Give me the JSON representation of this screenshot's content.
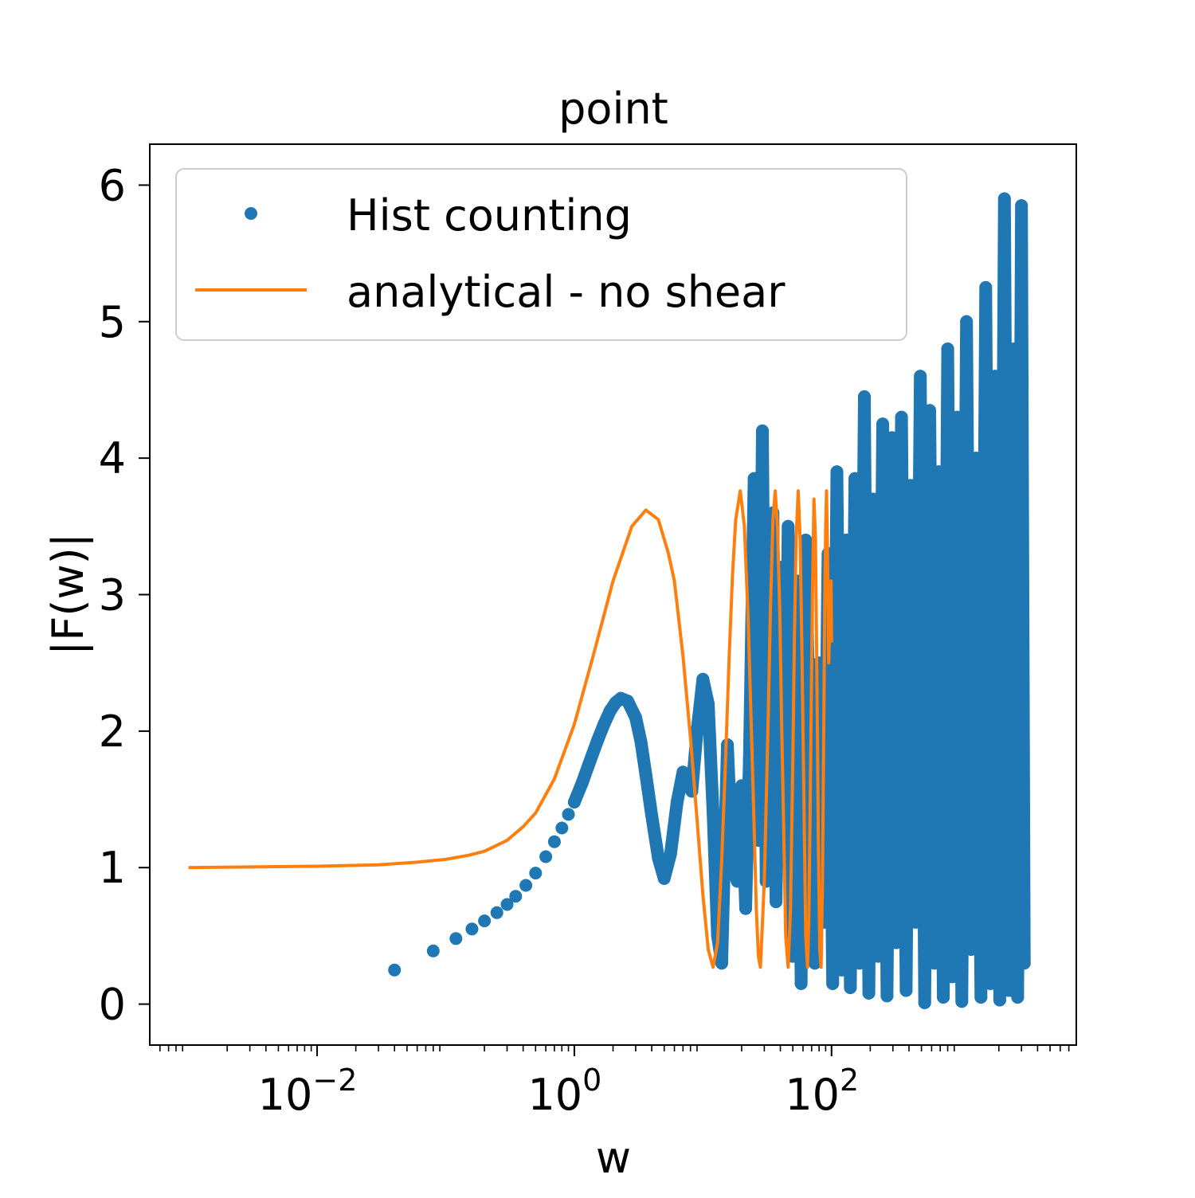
{
  "chart_data": {
    "type": "line",
    "title": "point",
    "xlabel": "w",
    "ylabel": "|F(w)|",
    "xscale": "log",
    "xlim": [
      0.0005,
      8000
    ],
    "ylim": [
      -0.3,
      6.3
    ],
    "grid": false,
    "legend_position": "top-left",
    "x_ticks": [
      {
        "value": 0.01,
        "base": "10",
        "exp": "−2"
      },
      {
        "value": 1,
        "base": "10",
        "exp": "0"
      },
      {
        "value": 100,
        "base": "10",
        "exp": "2"
      }
    ],
    "y_ticks": [
      0,
      1,
      2,
      3,
      4,
      5,
      6
    ],
    "series": [
      {
        "name": "Hist counting",
        "style": "markers",
        "color": "#1f77b4",
        "x": [
          0.04,
          0.08,
          0.12,
          0.16,
          0.2,
          0.25,
          0.3,
          0.35,
          0.42,
          0.5,
          0.6,
          0.7,
          0.8,
          0.9,
          1.0,
          1.15,
          1.3,
          1.5,
          1.7,
          1.9,
          2.1,
          2.3,
          2.6,
          3.0,
          3.3,
          3.6,
          4.0,
          4.5,
          5.0,
          5.6,
          6.3,
          7.0,
          7.6,
          8.2,
          9.0,
          10.0,
          11.0,
          12.0,
          13.0,
          14.0,
          15.5,
          17.0,
          18.5,
          20.0,
          21.5,
          23.0,
          25.0,
          27.0,
          29.0,
          31.0,
          33.0,
          35.0,
          37.0,
          40.0,
          43.0,
          46.0,
          50.0,
          54.0,
          58.0,
          63.0,
          68.0,
          74.0,
          80.0,
          87.0,
          94.0,
          102.0,
          110.0,
          120.0,
          130.0,
          140.0,
          152.0,
          165.0,
          180.0,
          195.0,
          210.0,
          230.0,
          250.0,
          270.0,
          295.0,
          320.0,
          350.0,
          380.0,
          410.0,
          450.0,
          490.0,
          530.0,
          580.0,
          630.0,
          680.0,
          740.0,
          800.0,
          870.0,
          950.0,
          1030.0,
          1120.0,
          1220.0,
          1330.0,
          1450.0,
          1580.0,
          1720.0,
          1870.0,
          2030.0,
          2210.0,
          2400.0,
          2600.0,
          2800.0,
          3000.0,
          3150.0
        ],
        "y": [
          0.25,
          0.39,
          0.48,
          0.55,
          0.61,
          0.67,
          0.73,
          0.79,
          0.87,
          0.96,
          1.08,
          1.19,
          1.29,
          1.39,
          1.48,
          1.62,
          1.76,
          1.92,
          2.05,
          2.15,
          2.21,
          2.24,
          2.22,
          2.1,
          1.92,
          1.68,
          1.38,
          1.07,
          0.92,
          1.1,
          1.48,
          1.7,
          1.62,
          1.56,
          2.0,
          2.38,
          2.2,
          1.4,
          0.5,
          0.3,
          1.9,
          1.0,
          0.9,
          1.6,
          0.7,
          1.8,
          3.85,
          1.2,
          4.2,
          0.9,
          2.5,
          3.6,
          0.75,
          3.2,
          1.05,
          3.5,
          0.35,
          3.1,
          0.15,
          3.4,
          1.7,
          0.3,
          2.5,
          0.6,
          3.3,
          0.15,
          3.9,
          0.25,
          3.4,
          0.12,
          3.85,
          0.3,
          4.45,
          0.08,
          3.7,
          0.35,
          4.25,
          0.06,
          4.15,
          0.45,
          4.3,
          0.1,
          3.8,
          0.6,
          4.6,
          0.01,
          4.35,
          0.3,
          3.9,
          0.05,
          4.8,
          0.2,
          4.3,
          0.02,
          5.0,
          0.4,
          4.0,
          0.05,
          5.25,
          0.15,
          4.6,
          0.03,
          5.9,
          0.1,
          4.8,
          0.05,
          5.85,
          0.3
        ]
      },
      {
        "name": "analytical - no shear",
        "style": "line",
        "color": "#ff7f0e",
        "x": [
          0.001,
          0.003,
          0.01,
          0.03,
          0.06,
          0.1,
          0.15,
          0.2,
          0.3,
          0.4,
          0.5,
          0.7,
          1.0,
          1.4,
          2.0,
          2.8,
          3.6,
          4.5,
          5.4,
          6.0,
          7.0,
          8.0,
          9.0,
          10.0,
          11.0,
          12.0,
          13.0,
          14.0,
          15.0,
          16.0,
          17.0,
          18.0,
          19.5,
          21.0,
          22.5,
          24.0,
          25.0,
          26.0,
          27.0,
          28.0,
          30.0,
          32.0,
          33.5,
          35.0,
          36.5,
          38.0,
          39.5,
          41.0,
          42.0,
          44.0,
          46.0,
          48.0,
          50.0,
          51.5,
          53.0,
          55.0,
          57.0,
          59.0,
          61.0,
          63.0,
          65.0,
          66.5,
          68.0,
          69.5,
          71.0,
          73.0,
          75.0,
          77.0,
          79.0,
          81.0,
          83.0,
          85.0,
          87.0,
          88.5,
          90.0,
          91.5,
          93.0,
          95.0,
          97.0,
          99.0,
          100.0
        ],
        "y": [
          1.0,
          1.005,
          1.01,
          1.02,
          1.04,
          1.06,
          1.09,
          1.12,
          1.2,
          1.3,
          1.4,
          1.65,
          2.05,
          2.55,
          3.1,
          3.5,
          3.62,
          3.55,
          3.3,
          3.1,
          2.55,
          1.95,
          1.35,
          0.8,
          0.4,
          0.27,
          0.45,
          1.05,
          1.8,
          2.55,
          3.15,
          3.55,
          3.76,
          3.5,
          2.8,
          1.9,
          1.3,
          0.7,
          0.35,
          0.27,
          0.9,
          2.0,
          2.9,
          3.55,
          3.76,
          3.5,
          2.9,
          2.0,
          1.5,
          0.5,
          0.27,
          0.7,
          1.8,
          2.7,
          3.4,
          3.76,
          3.4,
          2.5,
          1.5,
          0.5,
          0.27,
          0.6,
          1.3,
          2.2,
          3.0,
          3.7,
          3.4,
          2.4,
          1.2,
          0.4,
          0.27,
          0.9,
          2.0,
          2.9,
          3.5,
          3.76,
          3.3,
          2.5,
          2.8,
          3.1,
          2.65
        ]
      }
    ]
  }
}
